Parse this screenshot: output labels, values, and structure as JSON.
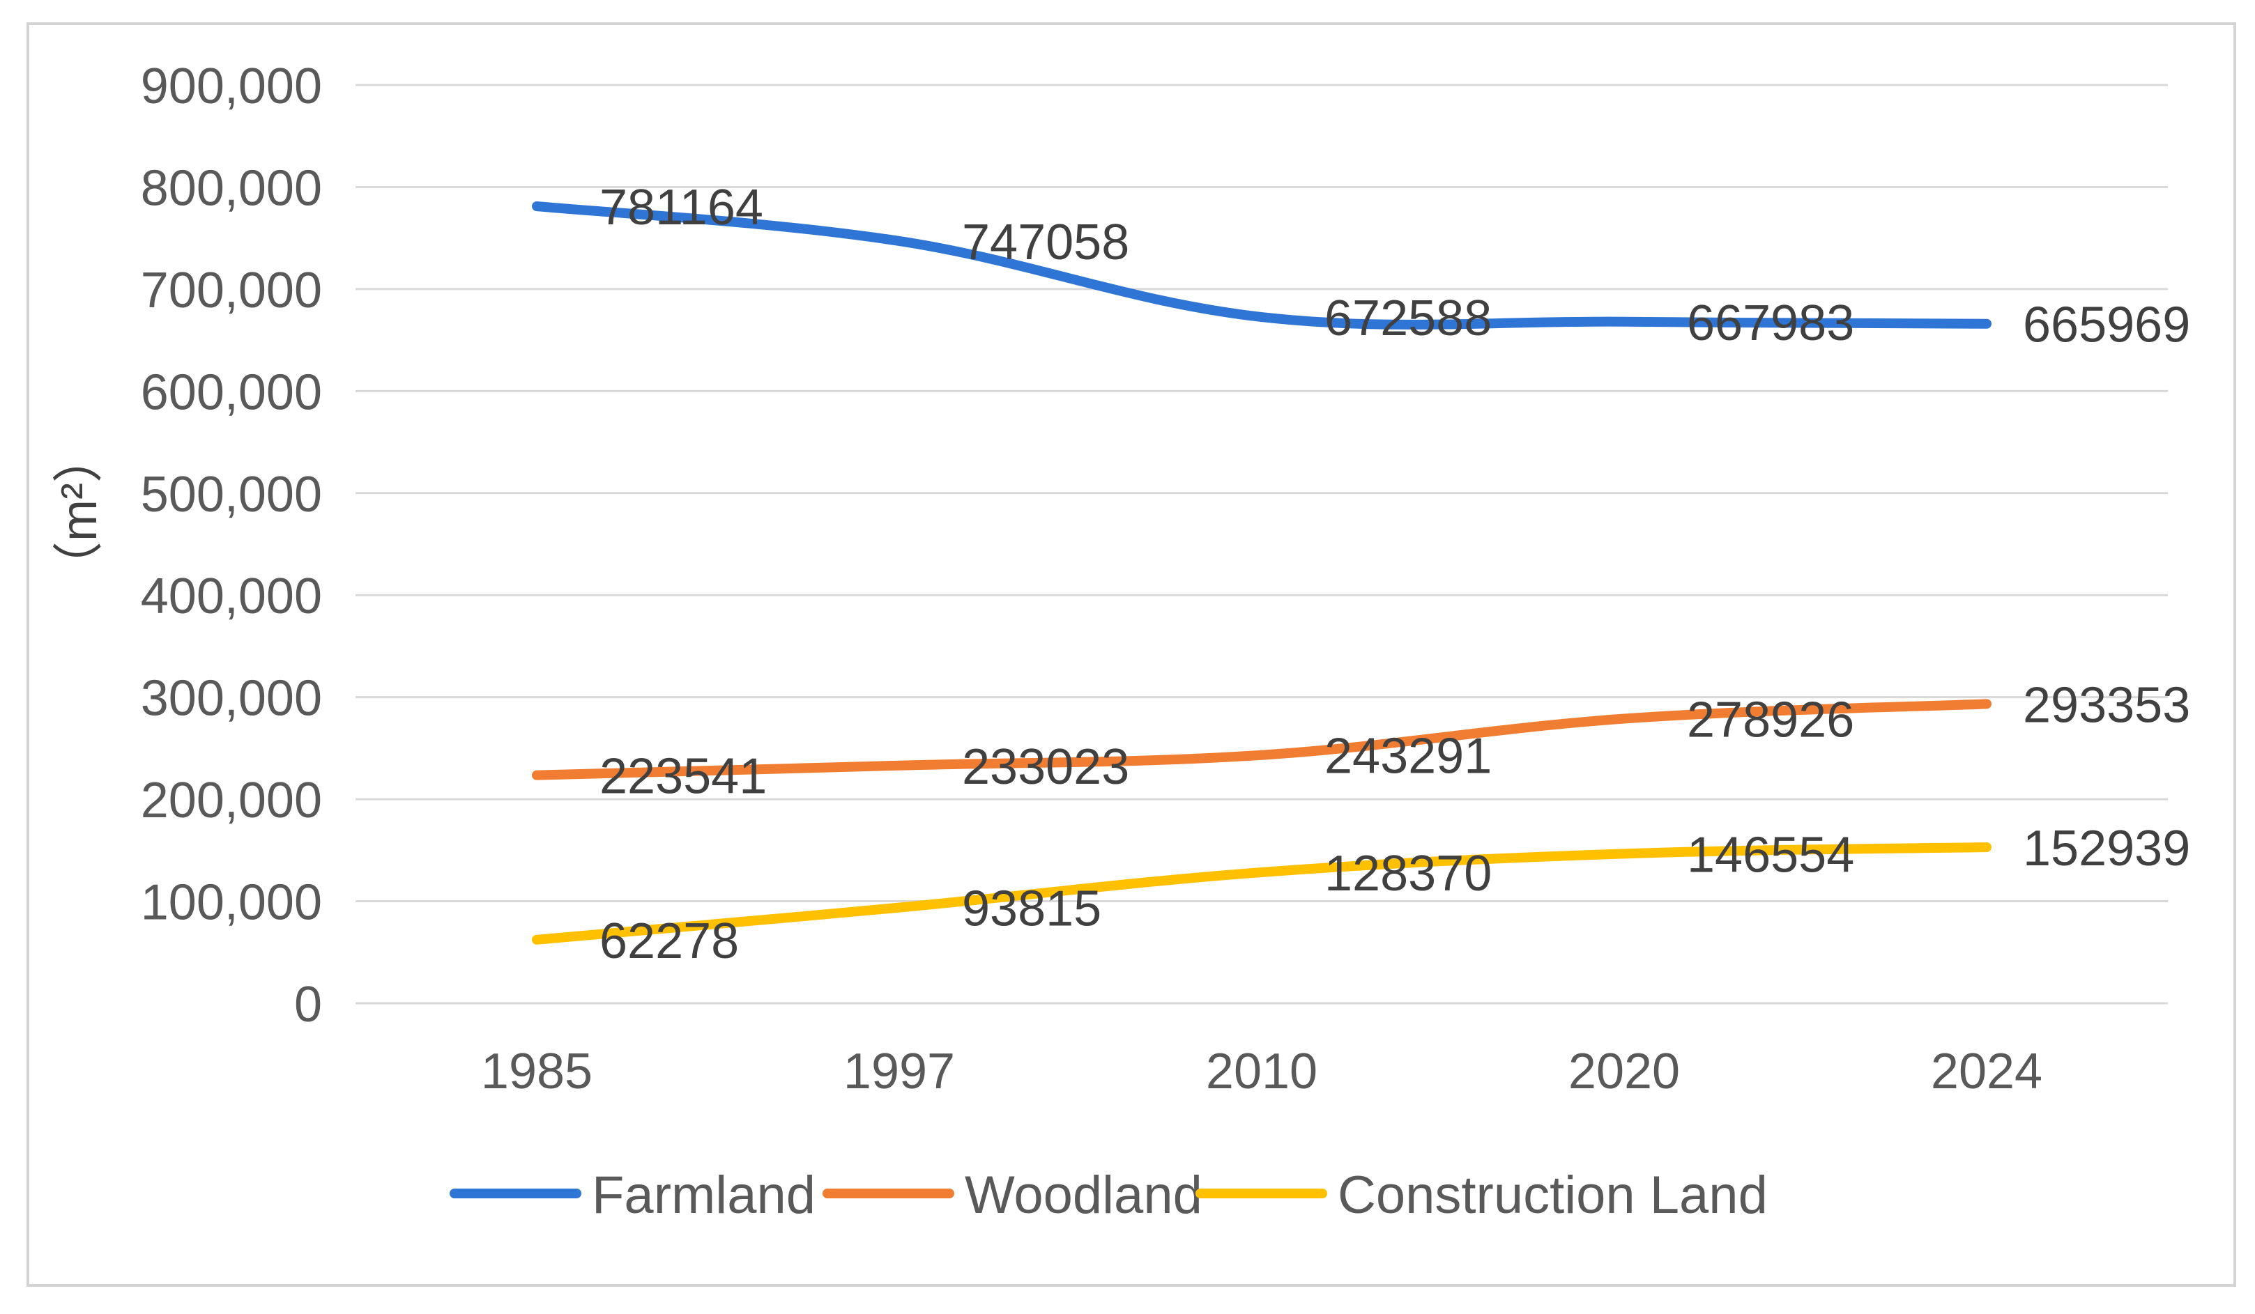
{
  "chart_data": {
    "type": "line",
    "title": "",
    "xlabel": "",
    "ylabel": "（m²）",
    "ylim": [
      0,
      900000
    ],
    "y_ticks": [
      0,
      100000,
      200000,
      300000,
      400000,
      500000,
      600000,
      700000,
      800000,
      900000
    ],
    "y_tick_labels": [
      "0",
      "100,000",
      "200,000",
      "300,000",
      "400,000",
      "500,000",
      "600,000",
      "700,000",
      "800,000",
      "900,000"
    ],
    "categories": [
      "1985",
      "1997",
      "2010",
      "2020",
      "2024"
    ],
    "grid": true,
    "legend_position": "bottom",
    "series": [
      {
        "name": "Farmland",
        "color": "#2e75d6",
        "values": [
          781164,
          747058,
          672588,
          667983,
          665969
        ],
        "labels": [
          "781164",
          "747058",
          "672588",
          "667983",
          "665969"
        ]
      },
      {
        "name": "Woodland",
        "color": "#f07d32",
        "values": [
          223541,
          233023,
          243291,
          278926,
          293353
        ],
        "labels": [
          "223541",
          "233023",
          "243291",
          "278926",
          "293353"
        ]
      },
      {
        "name": "Construction Land",
        "color": "#ffc000",
        "values": [
          62278,
          93815,
          128370,
          146554,
          152939
        ],
        "labels": [
          "62278",
          "93815",
          "128370",
          "146554",
          "152939"
        ]
      }
    ]
  }
}
